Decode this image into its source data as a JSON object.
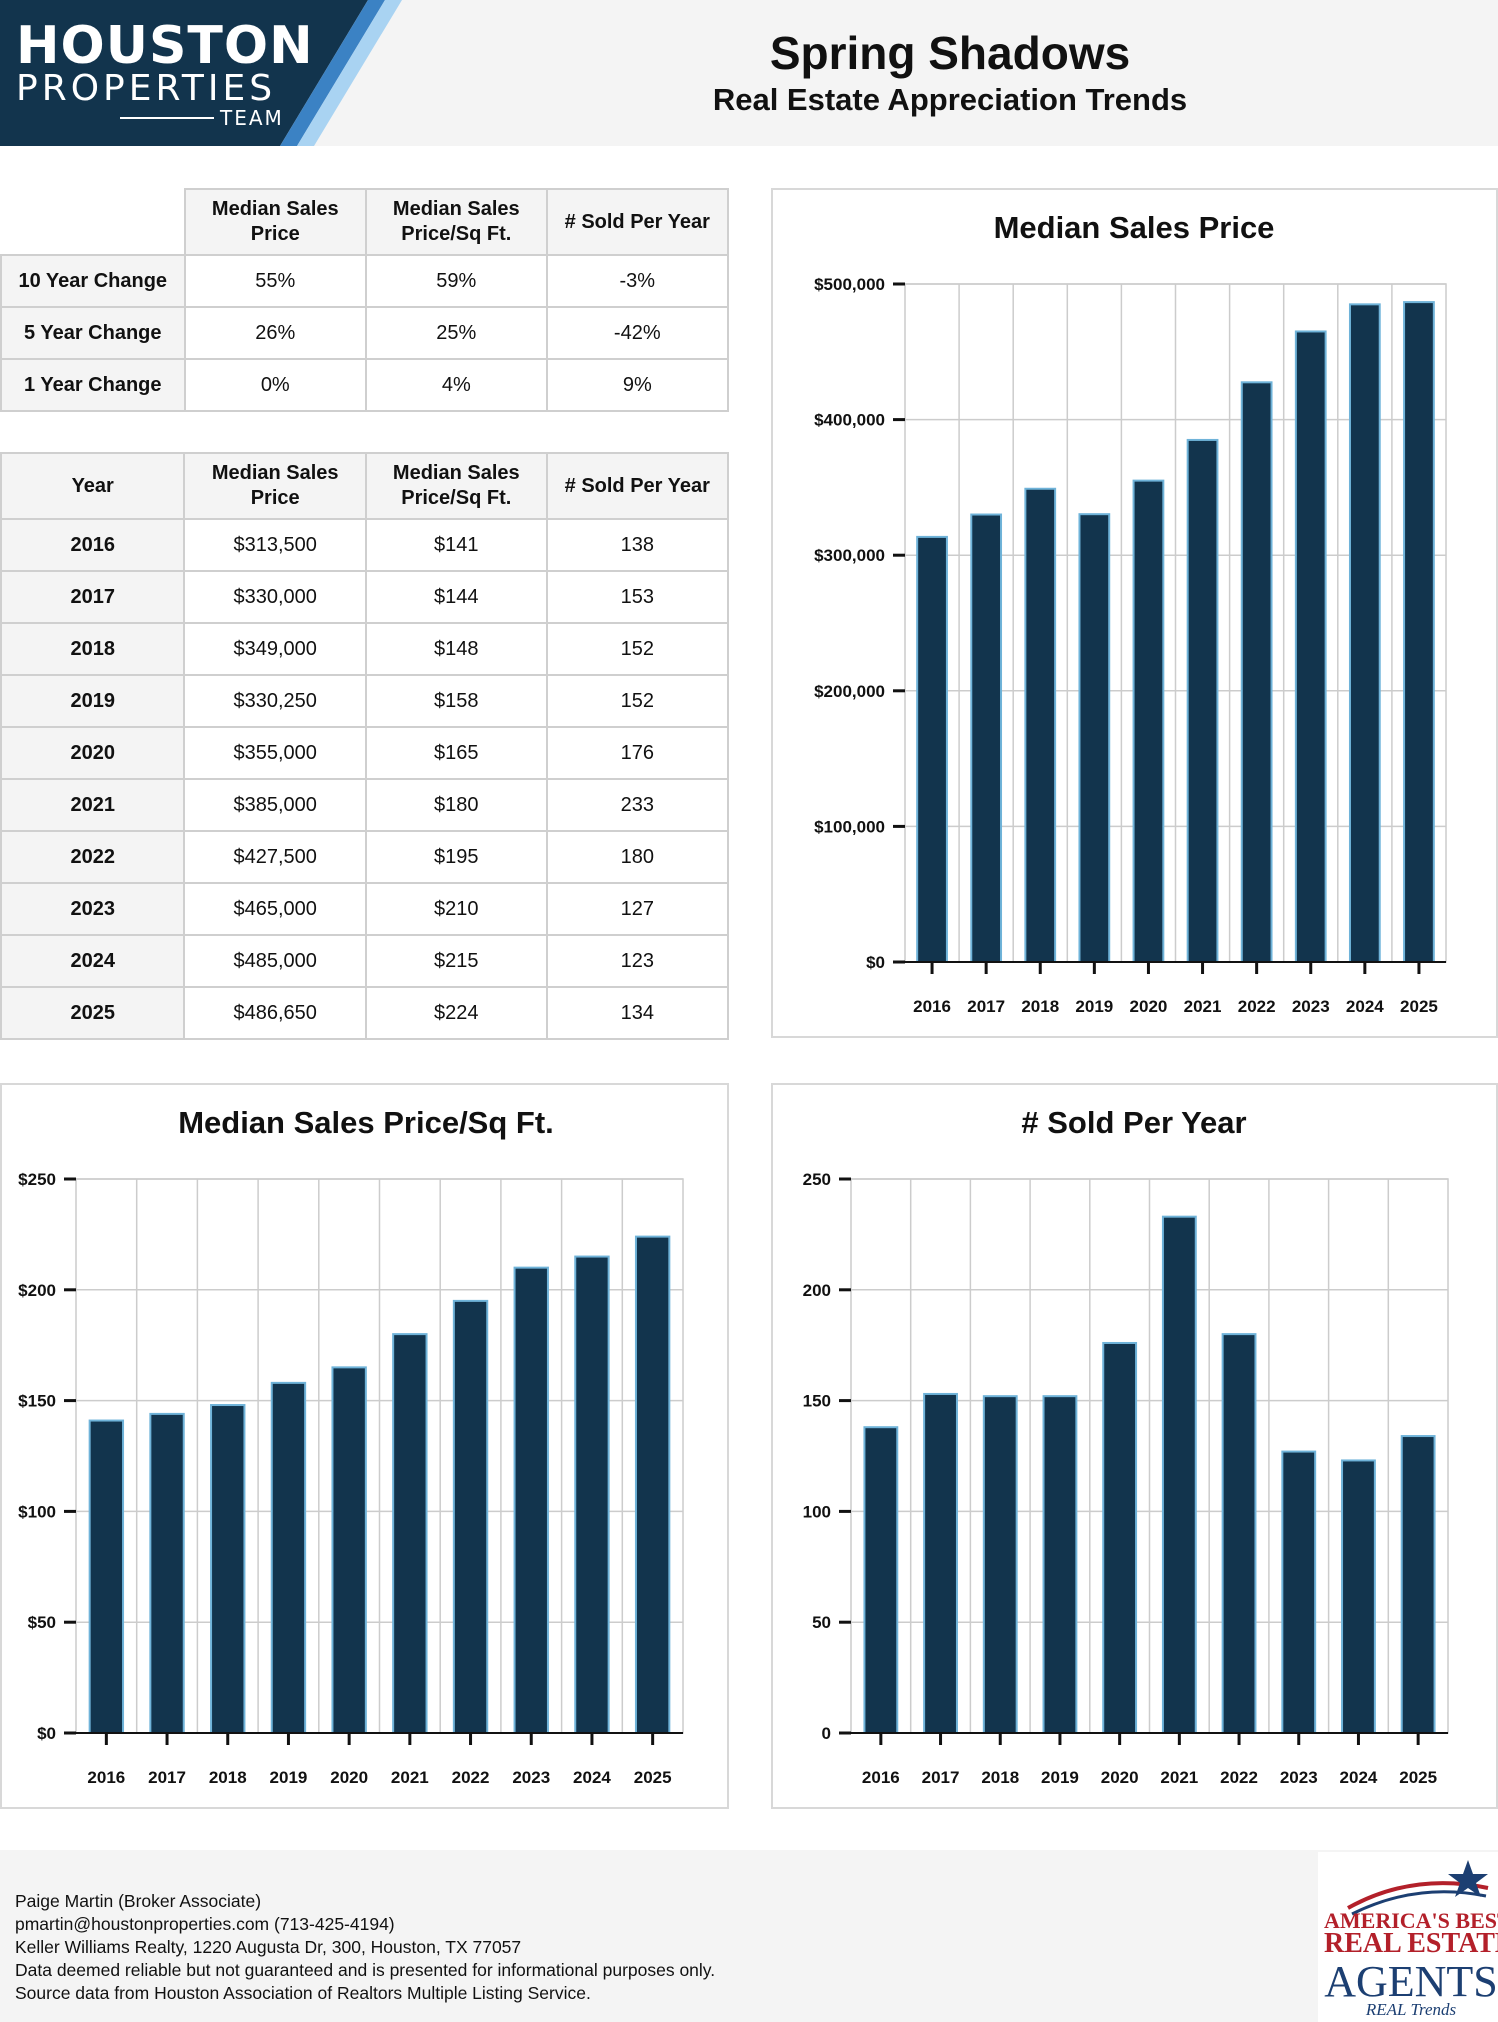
{
  "header": {
    "logo_line1": "HOUSTON",
    "logo_line2": "PROPERTIES",
    "logo_line3": "TEAM",
    "title": "Spring Shadows",
    "subtitle": "Real Estate Appreciation Trends"
  },
  "change_table": {
    "headers": [
      "",
      "Median Sales Price",
      "Median Sales Price/Sq Ft.",
      "# Sold Per Year"
    ],
    "rows": [
      {
        "label": "10 Year Change",
        "price": "55%",
        "sqft": "59%",
        "sold": "-3%"
      },
      {
        "label": "5 Year Change",
        "price": "26%",
        "sqft": "25%",
        "sold": "-42%"
      },
      {
        "label": "1 Year Change",
        "price": "0%",
        "sqft": "4%",
        "sold": "9%"
      }
    ]
  },
  "year_table": {
    "headers": [
      "Year",
      "Median Sales Price",
      "Median Sales Price/Sq Ft.",
      "# Sold Per Year"
    ],
    "rows": [
      {
        "year": "2016",
        "price": "$313,500",
        "sqft": "$141",
        "sold": "138"
      },
      {
        "year": "2017",
        "price": "$330,000",
        "sqft": "$144",
        "sold": "153"
      },
      {
        "year": "2018",
        "price": "$349,000",
        "sqft": "$148",
        "sold": "152"
      },
      {
        "year": "2019",
        "price": "$330,250",
        "sqft": "$158",
        "sold": "152"
      },
      {
        "year": "2020",
        "price": "$355,000",
        "sqft": "$165",
        "sold": "176"
      },
      {
        "year": "2021",
        "price": "$385,000",
        "sqft": "$180",
        "sold": "233"
      },
      {
        "year": "2022",
        "price": "$427,500",
        "sqft": "$195",
        "sold": "180"
      },
      {
        "year": "2023",
        "price": "$465,000",
        "sqft": "$210",
        "sold": "127"
      },
      {
        "year": "2024",
        "price": "$485,000",
        "sqft": "$215",
        "sold": "123"
      },
      {
        "year": "2025",
        "price": "$486,650",
        "sqft": "$224",
        "sold": "134"
      }
    ]
  },
  "chart_data": [
    {
      "id": "price",
      "type": "bar",
      "title": "Median Sales Price",
      "categories": [
        "2016",
        "2017",
        "2018",
        "2019",
        "2020",
        "2021",
        "2022",
        "2023",
        "2024",
        "2025"
      ],
      "values": [
        313500,
        330000,
        349000,
        330250,
        355000,
        385000,
        427500,
        465000,
        485000,
        486650
      ],
      "ylim": [
        0,
        500000
      ],
      "yticks": [
        0,
        100000,
        200000,
        300000,
        400000,
        500000
      ],
      "ytick_labels": [
        "$0",
        "$100,000",
        "$200,000",
        "$300,000",
        "$400,000",
        "$500,000"
      ],
      "grid": true
    },
    {
      "id": "sqft",
      "type": "bar",
      "title": "Median Sales Price/Sq Ft.",
      "categories": [
        "2016",
        "2017",
        "2018",
        "2019",
        "2020",
        "2021",
        "2022",
        "2023",
        "2024",
        "2025"
      ],
      "values": [
        141,
        144,
        148,
        158,
        165,
        180,
        195,
        210,
        215,
        224
      ],
      "ylim": [
        0,
        250
      ],
      "yticks": [
        0,
        50,
        100,
        150,
        200,
        250
      ],
      "ytick_labels": [
        "$0",
        "$50",
        "$100",
        "$150",
        "$200",
        "$250"
      ],
      "grid": true
    },
    {
      "id": "sold",
      "type": "bar",
      "title": "# Sold Per Year",
      "categories": [
        "2016",
        "2017",
        "2018",
        "2019",
        "2020",
        "2021",
        "2022",
        "2023",
        "2024",
        "2025"
      ],
      "values": [
        138,
        153,
        152,
        152,
        176,
        233,
        180,
        127,
        123,
        134
      ],
      "ylim": [
        0,
        250
      ],
      "yticks": [
        0,
        50,
        100,
        150,
        200,
        250
      ],
      "ytick_labels": [
        "0",
        "50",
        "100",
        "150",
        "200",
        "250"
      ],
      "grid": true
    }
  ],
  "colors": {
    "bar_fill": "#12344d",
    "bar_edge": "#6fb3d9",
    "logo_bg": "#12344d",
    "logo_stripe1": "#3b82c4",
    "logo_stripe2": "#a9d3f2",
    "grid": "#cccccc"
  },
  "footer": {
    "line1": "Paige Martin (Broker Associate)",
    "line2": "pmartin@houstonproperties.com (713-425-4194)",
    "line3": "Keller Williams Realty, 1220 Augusta Dr, 300, Houston, TX 77057",
    "line4": "Data deemed reliable but not guaranteed and is presented for informational purposes only.",
    "line5": "Source data from Houston Association of Realtors Multiple Listing Service."
  },
  "badge": {
    "line1": "AMERICA'S BEST",
    "line2": "REAL ESTATE",
    "line3": "AGENTS",
    "line4": "REAL Trends"
  }
}
